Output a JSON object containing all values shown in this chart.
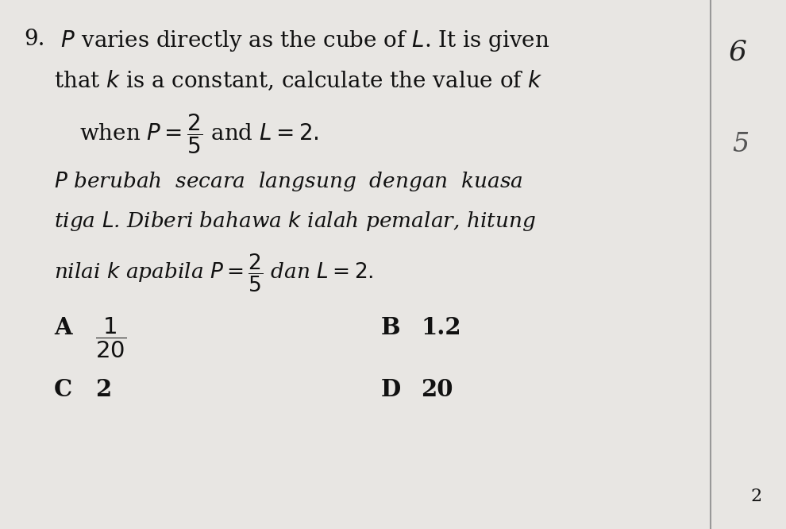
{
  "bg_color": "#e8e6e3",
  "text_color": "#111111",
  "border_color": "#999999",
  "font_size_en": 20,
  "font_size_my": 19,
  "font_size_opt": 21,
  "q_num": "9.",
  "en_line1": " $P$ varies directly as the cube of $L$. It is given",
  "en_line2": "that $k$ is a constant, calculate the value of $k$",
  "en_line3": "when $P = \\dfrac{2}{5}$ and $L = 2.$",
  "my_line1": "$P$ berubah  secara  langsung  dengan  kuasa",
  "my_line2": "tiga $L$. Diberi bahawa $k$ ialah pemalar, hitung",
  "my_line3": "nilai $k$ apabila $P = \\dfrac{2}{5}$ dan $L = 2.$",
  "opt_A": "A",
  "opt_A_val": "$\\dfrac{1}{20}$",
  "opt_B": "B",
  "opt_B_val": "1.2",
  "opt_C": "C",
  "opt_C_val": "2",
  "opt_D": "D",
  "opt_D_val": "20",
  "annot_6": "6",
  "annot_s": "5",
  "page_num": "2"
}
